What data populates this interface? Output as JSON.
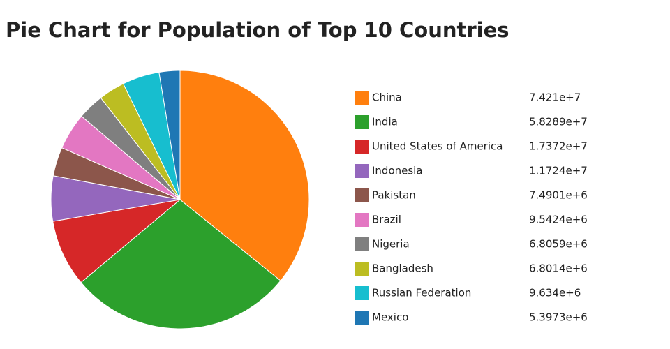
{
  "chart_data": {
    "type": "pie",
    "title": "Pie Chart for Population of Top 10 Countries",
    "categories": [
      "China",
      "India",
      "United States of America",
      "Indonesia",
      "Pakistan",
      "Brazil",
      "Nigeria",
      "Bangladesh",
      "Russian Federation",
      "Mexico"
    ],
    "values": [
      74210000,
      58289000,
      17372000,
      11724000,
      7490100,
      9542400,
      6805900,
      6801400,
      9634000,
      5397300
    ],
    "value_labels": [
      "7.421e+7",
      "5.8289e+7",
      "1.7372e+7",
      "1.1724e+7",
      "7.4901e+6",
      "9.5424e+6",
      "6.8059e+6",
      "6.8014e+6",
      "9.634e+6",
      "5.3973e+6"
    ],
    "colors": [
      "#ff7f0e",
      "#2ca02c",
      "#d62728",
      "#9467bd",
      "#8c564b",
      "#e377c2",
      "#7f7f7f",
      "#bcbd22",
      "#17becf",
      "#1f77b4"
    ]
  }
}
